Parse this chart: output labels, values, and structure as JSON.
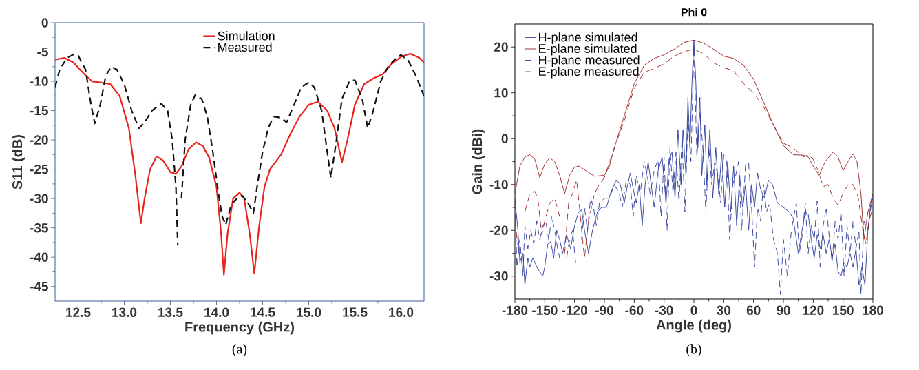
{
  "chart_data": [
    {
      "type": "line",
      "xlabel": "Frequency (GHz)",
      "ylabel": "S11 (dB)",
      "xlim": [
        12.25,
        16.25
      ],
      "ylim": [
        -47.5,
        0
      ],
      "xticks": [
        12.5,
        {
          "value": 13,
          "label": "13.0"
        },
        13.5,
        {
          "value": 14,
          "label": "14.0"
        },
        14.5,
        {
          "value": 15,
          "label": "15.0"
        },
        15.5,
        {
          "value": 16,
          "label": "16.0"
        }
      ],
      "yticks": [
        -45,
        -40,
        -35,
        -30,
        -25,
        -20,
        -15,
        -10,
        -5,
        0
      ],
      "legend": "top",
      "annotations": [
        "(a)"
      ],
      "series": [
        {
          "name": "Simulation",
          "color": "#e8231c",
          "line_style": "solid",
          "x": [
            12.25,
            12.35,
            12.45,
            12.55,
            12.65,
            12.75,
            12.85,
            12.95,
            13.05,
            13.12,
            13.18,
            13.22,
            13.28,
            13.35,
            13.42,
            13.5,
            13.56,
            13.62,
            13.7,
            13.78,
            13.85,
            13.92,
            14.0,
            14.05,
            14.08,
            14.12,
            14.18,
            14.25,
            14.3,
            14.36,
            14.41,
            14.46,
            14.52,
            14.58,
            14.7,
            14.8,
            14.9,
            15.0,
            15.1,
            15.2,
            15.28,
            15.36,
            15.42,
            15.5,
            15.6,
            15.7,
            15.8,
            15.9,
            16.0,
            16.1,
            16.2,
            16.25
          ],
          "values": [
            -6.3,
            -6.0,
            -6.8,
            -8.5,
            -10.0,
            -10.2,
            -10.5,
            -12.5,
            -18,
            -26,
            -34.2,
            -30,
            -25,
            -22.8,
            -23.5,
            -25.5,
            -25.8,
            -24.5,
            -21.5,
            -20.4,
            -21,
            -23,
            -28,
            -36,
            -43,
            -36,
            -30,
            -29,
            -30,
            -36,
            -42.8,
            -35,
            -28,
            -25,
            -22.5,
            -19,
            -16,
            -14,
            -13.5,
            -15,
            -18,
            -23.8,
            -20,
            -14,
            -10.5,
            -9.5,
            -8.8,
            -7,
            -5.8,
            -5.3,
            -6,
            -6.8
          ]
        },
        {
          "name": "Measured",
          "color": "#111111",
          "line_style": "dashed",
          "x": [
            12.25,
            12.3,
            12.38,
            12.45,
            12.5,
            12.58,
            12.64,
            12.68,
            12.74,
            12.8,
            12.86,
            12.92,
            13.0,
            13.08,
            13.16,
            13.22,
            13.3,
            13.4,
            13.47,
            13.52,
            13.56,
            13.58,
            13.595,
            13.62,
            13.66,
            13.72,
            13.77,
            13.84,
            13.9,
            13.96,
            14.02,
            14.06,
            14.1,
            14.16,
            14.22,
            14.28,
            14.35,
            14.4,
            14.44,
            14.5,
            14.56,
            14.62,
            14.7,
            14.76,
            14.84,
            14.92,
            15.0,
            15.06,
            15.14,
            15.2,
            15.24,
            15.3,
            15.36,
            15.44,
            15.5,
            15.58,
            15.64,
            15.7,
            15.78,
            15.86,
            15.95,
            16.0,
            16.08,
            16.16,
            16.25
          ],
          "values": [
            -11,
            -8,
            -6,
            -5.4,
            -5.6,
            -8,
            -14,
            -17.2,
            -14,
            -9,
            -7.5,
            -8,
            -10.5,
            -15,
            -18,
            -17,
            -15,
            -13.8,
            -15,
            -20,
            -28,
            -38,
            null,
            -30,
            -20,
            -14,
            -12.3,
            -13,
            -16,
            -22,
            -29,
            -33,
            -34.5,
            -31,
            -30,
            -29.5,
            -31,
            -32.5,
            -28,
            -22,
            -18,
            -16,
            -16.2,
            -17,
            -14,
            -11,
            -10.2,
            -11,
            -15,
            -22,
            -26.5,
            -20,
            -13,
            -10,
            -9.8,
            -13,
            -18,
            -15,
            -10,
            -7.5,
            -6,
            -5.5,
            -6.5,
            -9,
            -12.5
          ]
        }
      ]
    },
    {
      "type": "line",
      "title": "Phi 0",
      "xlabel": "Angle (deg)",
      "ylabel": "Gain (dBi)",
      "xlim": [
        -180,
        180
      ],
      "ylim": [
        -35,
        25
      ],
      "xticks": [
        -180,
        -150,
        -120,
        -90,
        -60,
        -30,
        0,
        30,
        60,
        90,
        120,
        150,
        180
      ],
      "yticks": [
        -30,
        -20,
        -10,
        0,
        10,
        20
      ],
      "legend": "top left",
      "annotations": [
        "(b)"
      ],
      "series": [
        {
          "name": "H-plane simulated",
          "color": "#2b3a9c",
          "line_style": "solid",
          "x": [
            -180,
            -177,
            -175,
            -172,
            -170,
            -167,
            -165,
            -162,
            -158,
            -155,
            -152,
            -150,
            -147,
            -144,
            -141,
            -138,
            -135,
            -132,
            -128,
            -124,
            -120,
            -116,
            -113,
            -110,
            -106,
            -102,
            -97,
            -93,
            -88,
            -84,
            -78,
            -74,
            -70,
            -67,
            -64,
            -61,
            -58,
            -55,
            -52,
            -49,
            -46,
            -43,
            -40,
            -36,
            -32,
            -28,
            -25,
            -22,
            -19,
            -16,
            -13,
            -11,
            -8,
            -6,
            -4,
            -2,
            0,
            2,
            4,
            6,
            8,
            11,
            13,
            16,
            19,
            22,
            25,
            28,
            31,
            34,
            37,
            40,
            43,
            46,
            49,
            52,
            55,
            58,
            61,
            64,
            67,
            71,
            75,
            79,
            84,
            90,
            96,
            100,
            105,
            108,
            112,
            115,
            118,
            121,
            124,
            127,
            130,
            133,
            136,
            139,
            142,
            145,
            148,
            151,
            154,
            157,
            160,
            163,
            166,
            169,
            172,
            175,
            178,
            180
          ],
          "values": [
            -13,
            -20,
            -27,
            -25,
            -32,
            -26,
            -28,
            -26,
            -28,
            -29,
            -30,
            -28,
            -23,
            -22.5,
            -26,
            -20,
            -22,
            -25,
            -21,
            -24,
            -19,
            -16,
            -15.5,
            -20,
            -25,
            -20,
            -16,
            -15,
            -15,
            -12,
            -9,
            -10,
            -14,
            -10.5,
            -7.5,
            -11,
            -14,
            -10,
            -19,
            -10,
            -5,
            -10,
            -15,
            -7,
            -4,
            -14,
            -4.5,
            -3,
            -13,
            2,
            -10,
            2,
            -8,
            9,
            -2,
            12,
            21.5,
            12,
            -2,
            9,
            -8,
            3,
            -10,
            2,
            -13,
            -2,
            -12,
            -3,
            -15,
            -5,
            -16,
            -6,
            -19,
            -8,
            -15,
            -10,
            -20,
            -10,
            -15,
            -7.5,
            -11,
            -13,
            -9,
            -10,
            -14,
            -15,
            -16,
            -17.5,
            -25,
            -21,
            -16,
            -16.5,
            -22,
            -26,
            -21,
            -24,
            -21,
            -25,
            -22,
            -26,
            -23,
            -29,
            -30,
            -27,
            -28,
            -25,
            -28,
            -24,
            -32,
            -28,
            -32,
            -20,
            -14,
            -12
          ]
        },
        {
          "name": "E-plane simulated",
          "color": "#9b1c1c",
          "line_style": "solid",
          "x": [
            -180,
            -175,
            -170,
            -165,
            -160,
            -155,
            -150,
            -145,
            -140,
            -135,
            -130,
            -125,
            -120,
            -115,
            -110,
            -100,
            -90,
            -85,
            -80,
            -70,
            -60,
            -50,
            -40,
            -30,
            -20,
            -10,
            0,
            10,
            20,
            30,
            40,
            50,
            60,
            70,
            80,
            90,
            100,
            110,
            115,
            120,
            126,
            132,
            140,
            145,
            150,
            155,
            160,
            164,
            168,
            171,
            175,
            180
          ],
          "values": [
            -12,
            -6,
            -4,
            -3.5,
            -4.5,
            -8.5,
            -5.5,
            -4.2,
            -5,
            -8,
            -12,
            -8,
            -6.2,
            -6,
            -6.8,
            -8.2,
            -8,
            -6,
            -2,
            5,
            12,
            16,
            17.5,
            18.3,
            19.5,
            21,
            21.5,
            20.8,
            19.5,
            18,
            17.5,
            16,
            13,
            8,
            3,
            -1.5,
            -3.5,
            -3.6,
            -4,
            -6,
            -8,
            -5,
            -2.9,
            -4,
            -7,
            -5,
            -3.3,
            -5,
            -12,
            -22,
            -16,
            -12
          ]
        },
        {
          "name": "H-plane measured",
          "color": "#2b3a9c",
          "line_style": "dashed",
          "x": [
            -180,
            -178,
            -175,
            -172,
            -170,
            -167,
            -164,
            -161,
            -158,
            -155,
            -152,
            -149,
            -146,
            -143,
            -140,
            -137,
            -134,
            -131,
            -128,
            -125,
            -122,
            -119,
            -116,
            -113,
            -110,
            -107,
            -104,
            -101,
            -98,
            -95,
            -90,
            -85,
            -80,
            -75,
            -72,
            -68,
            -64,
            -61,
            -58,
            -54,
            -50,
            -47,
            -44,
            -40,
            -36,
            -33,
            -30,
            -27,
            -24,
            -21,
            -18,
            -15,
            -12,
            -9,
            -6,
            -3,
            0,
            3,
            6,
            9,
            12,
            15,
            18,
            21,
            24,
            27,
            30,
            33,
            36,
            39,
            42,
            45,
            48,
            52,
            55,
            58,
            61,
            64,
            67,
            70,
            73,
            76,
            80,
            84,
            87,
            90,
            94,
            98,
            103,
            106,
            109,
            112,
            115,
            118,
            121,
            124,
            127,
            130,
            133,
            136,
            139,
            142,
            145,
            148,
            151,
            154,
            157,
            160,
            163,
            166,
            168,
            171,
            175,
            178,
            180
          ],
          "values": [
            -14,
            -28,
            -22,
            -30,
            -19,
            -24,
            -20,
            -23,
            -18,
            -22,
            -19,
            -18,
            -22,
            -17,
            -20,
            -24,
            -27,
            null,
            -26,
            -22,
            -20,
            -27,
            null,
            -22,
            -15,
            -20,
            -13,
            -15,
            -19,
            -14,
            -13,
            -13,
            -10,
            -12,
            -15,
            -9,
            -10,
            -17,
            -8,
            -12,
            -5,
            -8,
            -12,
            -7,
            -4.5,
            -17,
            -4,
            -20,
            -2,
            -12,
            -3,
            -14,
            0,
            -16,
            5,
            -5,
            20,
            -4,
            6,
            -2,
            -16,
            -2,
            -10,
            -5,
            -8,
            -14,
            -3.5,
            -5,
            -22,
            -10,
            -8,
            -5,
            -20,
            -5.5,
            -5.2,
            -15,
            -28,
            -15,
            -18,
            -10,
            -16,
            -14,
            -22,
            -25,
            -34,
            -22,
            -30,
            -20,
            -14,
            -25,
            -21,
            -14,
            -25,
            -19,
            -22,
            -13.5,
            -28,
            -19,
            -15,
            -21,
            -27,
            -18,
            -22,
            -16,
            -30,
            -19,
            -25,
            -18,
            -24,
            -20,
            -34,
            -18,
            -20,
            -15,
            -13
          ]
        },
        {
          "name": "E-plane measured",
          "color": "#9b1c1c",
          "line_style": "dashed",
          "x": [
            -180,
            -176,
            -174,
            -170,
            -165,
            -160,
            -157,
            -153,
            -150,
            -145,
            -140,
            -135,
            -133,
            -130,
            -126,
            -122,
            -118,
            -115,
            -112,
            -110,
            -106,
            -100,
            -95,
            -90,
            -80,
            -70,
            -60,
            -50,
            -40,
            -30,
            -20,
            -10,
            0,
            10,
            20,
            30,
            40,
            50,
            60,
            70,
            80,
            90,
            95,
            100,
            110,
            115,
            120,
            125,
            130,
            135,
            140,
            145,
            150,
            155,
            160,
            165,
            170,
            173,
            176,
            180
          ],
          "values": [
            -18,
            -25,
            null,
            -16,
            -12,
            -11.5,
            -13,
            -21,
            -18,
            -14,
            -13,
            -17,
            null,
            -25,
            -14,
            -12,
            -9,
            -15,
            -22,
            -26,
            -18,
            -12,
            -10,
            -8.5,
            -2,
            4,
            11,
            14.5,
            15.3,
            16.3,
            18,
            19,
            19.5,
            18.5,
            16.5,
            15.5,
            14.8,
            12,
            10,
            7,
            3,
            -1,
            -1.5,
            -2,
            -4,
            -3.5,
            -4.5,
            -7,
            -10.5,
            -10,
            -13,
            -14.5,
            -12,
            -10,
            -10,
            -12.5,
            -20,
            -23,
            -18,
            -15
          ]
        }
      ]
    }
  ]
}
